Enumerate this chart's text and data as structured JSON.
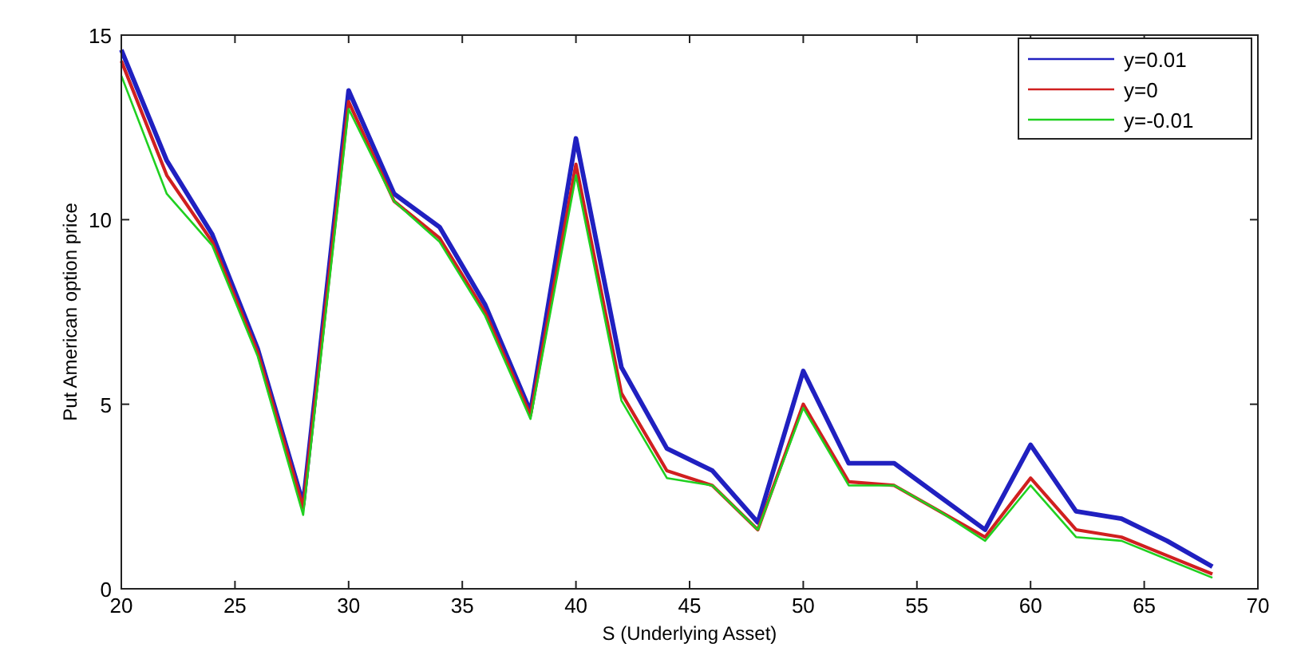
{
  "chart_data": {
    "type": "line",
    "xlabel": "S (Underlying Asset)",
    "ylabel": "Put American option price",
    "x": [
      20,
      22,
      24,
      26,
      28,
      30,
      32,
      34,
      36,
      38,
      40,
      42,
      44,
      46,
      48,
      50,
      52,
      54,
      56,
      58,
      60,
      62,
      64,
      66,
      68
    ],
    "series": [
      {
        "name": "y=0.01",
        "color": "#2020c0",
        "values": [
          14.6,
          11.6,
          9.6,
          6.5,
          2.3,
          13.5,
          10.7,
          9.8,
          7.7,
          4.8,
          12.2,
          6.0,
          3.8,
          3.2,
          1.8,
          5.9,
          3.4,
          3.4,
          2.5,
          1.6,
          3.9,
          2.1,
          1.9,
          1.3,
          0.6
        ]
      },
      {
        "name": "y=0",
        "color": "#d02020",
        "values": [
          14.3,
          11.2,
          9.4,
          6.4,
          2.2,
          13.2,
          10.5,
          9.5,
          7.5,
          4.7,
          11.5,
          5.3,
          3.2,
          2.8,
          1.6,
          5.0,
          2.9,
          2.8,
          2.1,
          1.4,
          3.0,
          1.6,
          1.4,
          0.9,
          0.4
        ]
      },
      {
        "name": "y=-0.01",
        "color": "#20d020",
        "values": [
          13.9,
          10.7,
          9.3,
          6.3,
          2.0,
          13.0,
          10.5,
          9.4,
          7.4,
          4.6,
          11.2,
          5.1,
          3.0,
          2.8,
          1.6,
          4.9,
          2.8,
          2.8,
          2.1,
          1.3,
          2.8,
          1.4,
          1.3,
          0.8,
          0.3
        ]
      }
    ],
    "xlim": [
      20,
      70
    ],
    "xticks": [
      20,
      25,
      30,
      35,
      40,
      45,
      50,
      55,
      60,
      65,
      70
    ],
    "ylim": [
      0,
      15
    ],
    "yticks": [
      0,
      5,
      10,
      15
    ],
    "grid": false,
    "legend": "top right",
    "marker": "none",
    "line_style": "solid"
  }
}
